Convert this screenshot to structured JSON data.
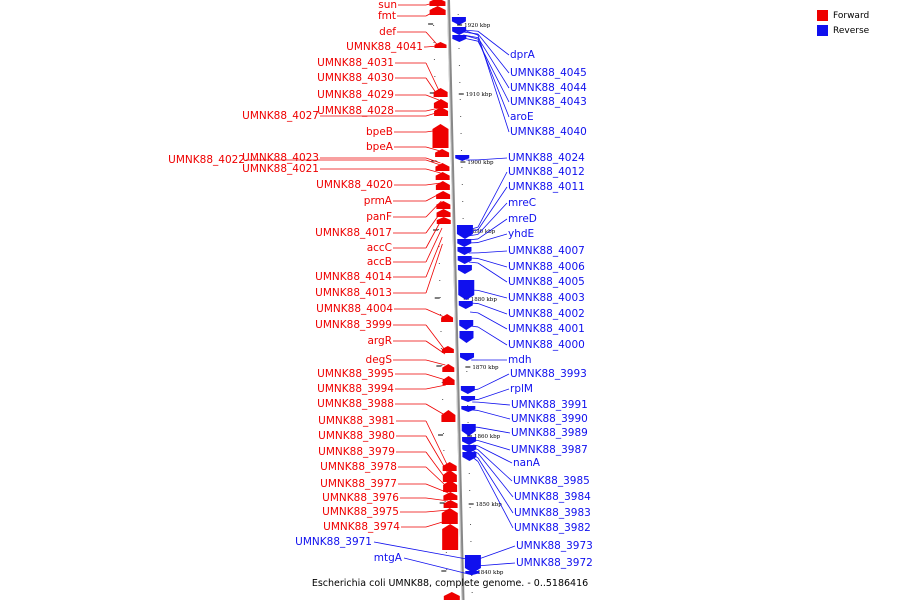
{
  "colors": {
    "forward": "#ee0000",
    "reverse": "#1010ee",
    "backbone": "#888888"
  },
  "legend": [
    {
      "label": "Forward",
      "color": "#ee0000"
    },
    {
      "label": "Reverse",
      "color": "#1010ee"
    }
  ],
  "caption": "Escherichia coli UMNK88, complete genome. - 0..5186416",
  "scale": {
    "unit": "kbp",
    "ticks": [
      "1920 kbp",
      "1910 kbp",
      "1900 kbp",
      "1890 kbp",
      "1880 kbp",
      "1870 kbp",
      "1860 kbp",
      "1850 kbp",
      "1840 kbp"
    ]
  },
  "forward_labels": [
    "sun",
    "fmt",
    "def",
    "UMNK88_4041",
    "UMNK88_4031",
    "UMNK88_4030",
    "UMNK88_4029",
    "UMNK88_4028",
    "UMNK88_4027",
    "bpeB",
    "bpeA",
    "UMNK88_4023",
    "UMNK88_4022",
    "UMNK88_4021",
    "UMNK88_4020",
    "prmA",
    "panF",
    "UMNK88_4017",
    "accC",
    "accB",
    "UMNK88_4014",
    "UMNK88_4013",
    "UMNK88_4004",
    "UMNK88_3999",
    "argR",
    "degS",
    "UMNK88_3995",
    "UMNK88_3994",
    "UMNK88_3988",
    "UMNK88_3981",
    "UMNK88_3980",
    "UMNK88_3979",
    "UMNK88_3978",
    "UMNK88_3977",
    "UMNK88_3976",
    "UMNK88_3975",
    "UMNK88_3974"
  ],
  "reverse_labels": [
    "dprA",
    "UMNK88_4045",
    "UMNK88_4044",
    "UMNK88_4043",
    "aroE",
    "UMNK88_4040",
    "UMNK88_4024",
    "UMNK88_4012",
    "UMNK88_4011",
    "mreC",
    "mreD",
    "yhdE",
    "UMNK88_4007",
    "UMNK88_4006",
    "UMNK88_4005",
    "UMNK88_4003",
    "UMNK88_4002",
    "UMNK88_4001",
    "UMNK88_4000",
    "mdh",
    "UMNK88_3993",
    "rplM",
    "UMNK88_3991",
    "UMNK88_3990",
    "UMNK88_3989",
    "UMNK88_3987",
    "nanA",
    "UMNK88_3985",
    "UMNK88_3984",
    "UMNK88_3983",
    "UMNK88_3982",
    "UMNK88_3973",
    "UMNK88_3972",
    "UMNK88_3971",
    "mtgA"
  ]
}
